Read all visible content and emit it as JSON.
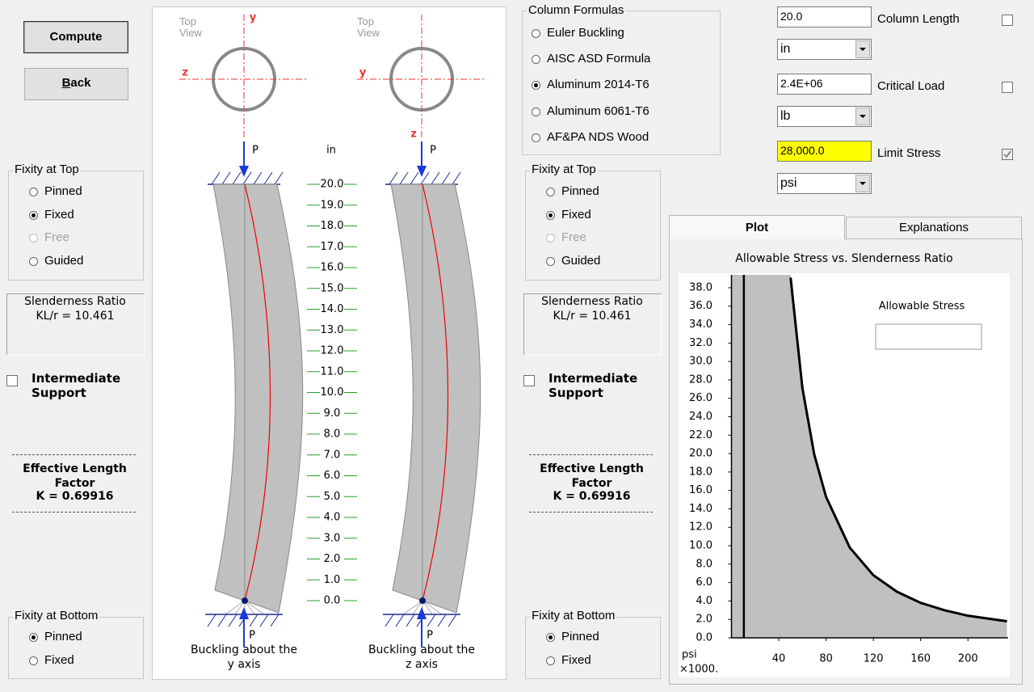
{
  "buttons": [
    "Compute",
    "Back"
  ],
  "panels": [
    {
      "fixity_top": {
        "title": "Fixity at Top",
        "options": [
          "Pinned",
          "Fixed",
          "Free",
          "Guided"
        ],
        "selected": 1,
        "disabled": 2
      },
      "slenderness": {
        "title": "Slenderness Ratio",
        "value": "KL/r = 10.461"
      },
      "intermediate": "Intermediate Support",
      "effective": {
        "title": "Effective Length Factor",
        "value": "K = 0.69916"
      },
      "fixity_bottom": {
        "title": "Fixity at Bottom",
        "options": [
          "Pinned",
          "Fixed"
        ],
        "selected": 0
      }
    },
    {
      "fixity_top": {
        "title": "Fixity at Top",
        "options": [
          "Pinned",
          "Fixed",
          "Free",
          "Guided"
        ],
        "selected": 1,
        "disabled": 2
      },
      "slenderness": {
        "title": "Slenderness Ratio",
        "value": "KL/r = 10.461"
      },
      "intermediate": "Intermediate Support",
      "effective": {
        "title": "Effective Length Factor",
        "value": "K = 0.69916"
      },
      "fixity_bottom": {
        "title": "Fixity at Bottom",
        "options": [
          "Pinned",
          "Fixed"
        ],
        "selected": 0
      }
    }
  ],
  "column_formulas": {
    "title": "Column Formulas",
    "options": [
      "Euler Buckling",
      "AISC ASD Formula",
      "Aluminum 2014-T6",
      "Aluminum 6061-T6",
      "AF&PA NDS Wood"
    ],
    "selected": 2
  },
  "inputs": [
    {
      "value": "20.0",
      "unit": "in",
      "label": "Column Length",
      "checked": false
    },
    {
      "value": "2.4E+06",
      "unit": "lb",
      "label": "Critical Load",
      "checked": false
    },
    {
      "value": "28,000.0",
      "unit": "psi",
      "label": "Limit Stress",
      "checked": true,
      "highlight": "#ffff00"
    }
  ],
  "diagram": {
    "unit": "in",
    "scale": [
      "20.0",
      "19.0",
      "18.0",
      "17.0",
      "16.0",
      "15.0",
      "14.0",
      "13.0",
      "12.0",
      "11.0",
      "10.0",
      "9.0",
      "8.0",
      "7.0",
      "6.0",
      "5.0",
      "4.0",
      "3.0",
      "2.0",
      "1.0",
      "0.0"
    ],
    "columns": [
      {
        "top_view": "Top View",
        "axis_v": "y",
        "axis_h": "z",
        "v_label_at": "top",
        "load_top": "P",
        "load_bottom": "P",
        "caption": "Buckling about the y axis"
      },
      {
        "top_view": "Top View",
        "axis_v": "z",
        "axis_h": "y",
        "v_label_at": "bottom",
        "load_top": "P",
        "load_bottom": "P",
        "caption": "Buckling about the z axis"
      }
    ]
  },
  "tabs": {
    "items": [
      "Plot",
      "Explanations"
    ],
    "active": 0
  },
  "plot": {
    "title": "Allowable Stress vs. Slenderness Ratio",
    "legend": "Allowable Stress",
    "y_unit": "psi",
    "y_scale": "×1000.",
    "xlim": [
      0,
      234
    ],
    "ylim": [
      0,
      39.4
    ],
    "xticks": [
      40,
      80,
      120,
      160,
      200
    ],
    "yticks": [
      {
        "value": 0,
        "label": "0.0"
      },
      {
        "value": 2,
        "label": "2.0"
      },
      {
        "value": 4,
        "label": "4.0"
      },
      {
        "value": 6,
        "label": "6.0"
      },
      {
        "value": 8,
        "label": "8.0"
      },
      {
        "value": 10,
        "label": "10.0"
      },
      {
        "value": 12,
        "label": "12.0"
      },
      {
        "value": 14,
        "label": "14.0"
      },
      {
        "value": 16,
        "label": "16.0"
      },
      {
        "value": 18,
        "label": "18.0"
      },
      {
        "value": 20,
        "label": "20.0"
      },
      {
        "value": 22,
        "label": "22.0"
      },
      {
        "value": 24,
        "label": "24.0"
      },
      {
        "value": 26,
        "label": "26.0"
      },
      {
        "value": 28,
        "label": "28.0"
      },
      {
        "value": 30,
        "label": "30.0"
      },
      {
        "value": 32,
        "label": "32.0"
      },
      {
        "value": 34,
        "label": "34.0"
      },
      {
        "value": 36,
        "label": "36.0"
      },
      {
        "value": 38,
        "label": "38.0"
      }
    ],
    "x": [
      50,
      60,
      70,
      80,
      100,
      120,
      140,
      160,
      180,
      200,
      233
    ],
    "y": [
      39.1,
      27.1,
      19.9,
      15.3,
      9.8,
      6.8,
      5.0,
      3.8,
      3.0,
      2.4,
      1.8
    ],
    "marker_x": 10.461,
    "fill": "#c0c0c0"
  }
}
